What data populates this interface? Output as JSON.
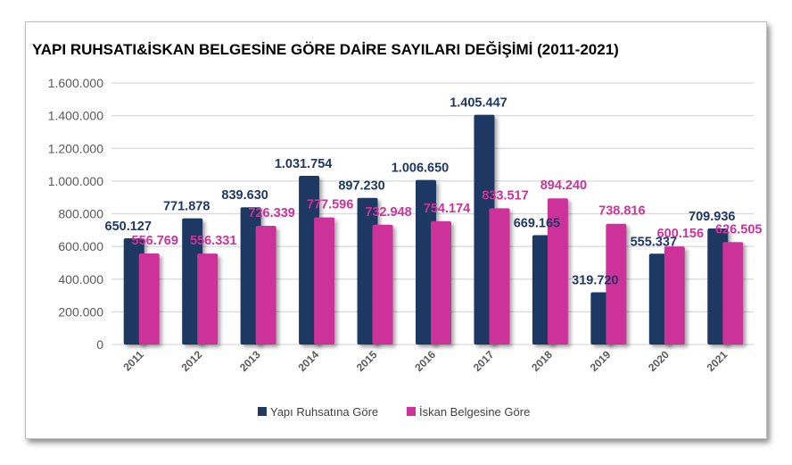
{
  "chart_data": {
    "type": "bar",
    "title": "YAPI RUHSATI&İSKAN BELGESİNE GÖRE DAİRE SAYILARI DEĞİŞİMİ (2011-2021)",
    "categories": [
      "2011",
      "2012",
      "2013",
      "2014",
      "2015",
      "2016",
      "2017",
      "2018",
      "2019",
      "2020",
      "2021"
    ],
    "series": [
      {
        "name": "Yapı Ruhsatına Göre",
        "color": "#1f3864",
        "values": [
          650127,
          771878,
          839630,
          1031754,
          897230,
          1006650,
          1405447,
          669165,
          319720,
          555337,
          709936
        ],
        "labels": [
          "650.127",
          "771.878",
          "839.630",
          "1.031.754",
          "897.230",
          "1.006.650",
          "1.405.447",
          "669.165",
          "319.720",
          "555.337",
          "709.936"
        ]
      },
      {
        "name": "İskan Belgesine Göre",
        "color": "#cc3399",
        "values": [
          556769,
          556331,
          726339,
          777596,
          732948,
          754174,
          833517,
          894240,
          738816,
          600156,
          626505
        ],
        "labels": [
          "556.769",
          "556.331",
          "726.339",
          "777.596",
          "732.948",
          "754.174",
          "833.517",
          "894.240",
          "738.816",
          "600.156",
          "626.505"
        ]
      }
    ],
    "ylim": [
      0,
      1600000
    ],
    "yticks": [
      0,
      200000,
      400000,
      600000,
      800000,
      1000000,
      1200000,
      1400000,
      1600000
    ],
    "ytick_labels": [
      "0",
      "200.000",
      "400.000",
      "600.000",
      "800.000",
      "1.000.000",
      "1.200.000",
      "1.400.000",
      "1.600.000"
    ],
    "grid": true,
    "legend": "bottom"
  }
}
